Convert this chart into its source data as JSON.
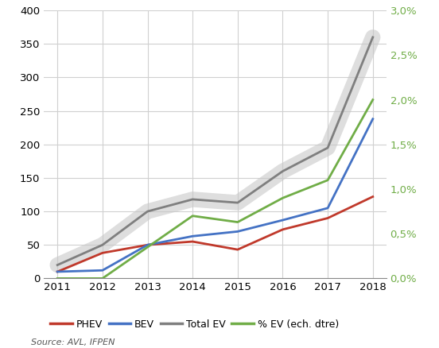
{
  "years": [
    2011,
    2012,
    2013,
    2014,
    2015,
    2016,
    2017,
    2018
  ],
  "phev": [
    10,
    38,
    50,
    55,
    43,
    73,
    90,
    122
  ],
  "bev": [
    10,
    12,
    50,
    63,
    70,
    87,
    105,
    238
  ],
  "total_ev": [
    20,
    50,
    100,
    118,
    113,
    160,
    195,
    360
  ],
  "pct_ev": [
    0.0,
    0.0,
    0.35,
    0.7,
    0.63,
    0.9,
    1.1,
    2.0
  ],
  "phev_color": "#c0392b",
  "bev_color": "#4472c4",
  "total_ev_color": "#7f7f7f",
  "total_ev_shadow_color": "#c8c8c8",
  "pct_ev_color": "#70ad47",
  "ylim_left": [
    0,
    400
  ],
  "ylim_right": [
    0.0,
    3.0
  ],
  "yticks_left": [
    0,
    50,
    100,
    150,
    200,
    250,
    300,
    350,
    400
  ],
  "yticks_right": [
    0.0,
    0.5,
    1.0,
    1.5,
    2.0,
    2.5,
    3.0
  ],
  "ytick_right_labels": [
    "0,0%",
    "0,5%",
    "1,0%",
    "1,5%",
    "2,0%",
    "2,5%",
    "3,0%"
  ],
  "legend_labels": [
    "PHEV",
    "BEV",
    "Total EV",
    "% EV (ech. dtre)"
  ],
  "source_text": "Source: AVL, IFPEN",
  "background_color": "#ffffff",
  "grid_color": "#d0d0d0"
}
